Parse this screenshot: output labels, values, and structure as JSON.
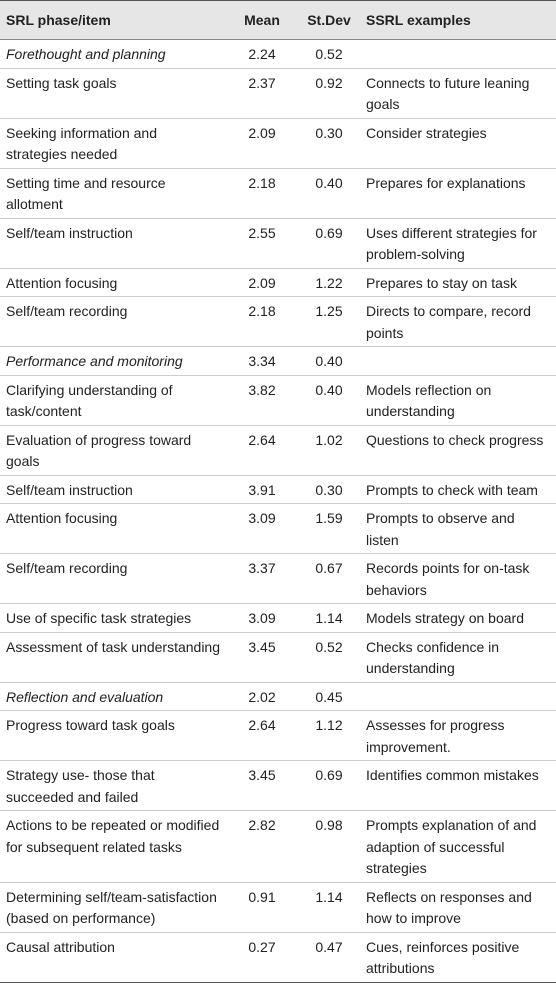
{
  "table": {
    "headers": [
      "SRL phase/item",
      "Mean",
      "St.Dev",
      "SSRL examples"
    ],
    "rows": [
      [
        "Forethought and planning",
        "2.24",
        "0.52"
      ],
      [
        "Setting task goals",
        "2.37",
        "0.92",
        "Connects to future leaning goals"
      ],
      [
        "Seeking information and strategies needed",
        "2.09",
        "0.30",
        "Consider strategies"
      ],
      [
        "Setting time and resource allotment",
        "2.18",
        "0.40",
        "Prepares for explanations"
      ],
      [
        "Self/team instruction",
        "2.55",
        "0.69",
        "Uses different strategies for problem-solving"
      ],
      [
        "Attention focusing",
        "2.09",
        "1.22",
        "Prepares to stay on task"
      ],
      [
        "Self/team recording",
        "2.18",
        "1.25",
        "Directs to compare, record points"
      ],
      [
        "Performance and monitoring",
        "3.34",
        "0.40"
      ],
      [
        "Clarifying understanding of task/content",
        "3.82",
        "0.40",
        "Models reflection on understanding"
      ],
      [
        "Evaluation of progress toward goals",
        "2.64",
        "1.02",
        "Questions to check progress"
      ],
      [
        "Self/team instruction",
        "3.91",
        "0.30",
        "Prompts to check with team"
      ],
      [
        "Attention focusing",
        "3.09",
        "1.59",
        "Prompts to observe and listen"
      ],
      [
        "Self/team recording",
        "3.37",
        "0.67",
        "Records points for on-task behaviors"
      ],
      [
        "Use of specific task strategies",
        "3.09",
        "1.14",
        "Models strategy on board"
      ],
      [
        "Assessment of task understanding",
        "3.45",
        "0.52",
        "Checks confidence in understanding"
      ],
      [
        "Reflection and evaluation",
        "2.02",
        "0.45"
      ],
      [
        "Progress toward task goals",
        "2.64",
        "1.12",
        "Assesses for progress improvement."
      ],
      [
        "Strategy use- those that succeeded and failed",
        "3.45",
        "0.69",
        "Identifies common mistakes"
      ],
      [
        "Actions to be repeated or modified for subsequent related tasks",
        "2.82",
        "0.98",
        "Prompts explanation of and adaption of successful strategies"
      ],
      [
        "Determining self/team-satisfaction (based on performance)",
        "0.91",
        "1.14",
        "Reflects on responses and how to improve"
      ],
      [
        "Causal attribution",
        "0.27",
        "0.47",
        "Cues, reinforces positive attributions"
      ]
    ]
  }
}
